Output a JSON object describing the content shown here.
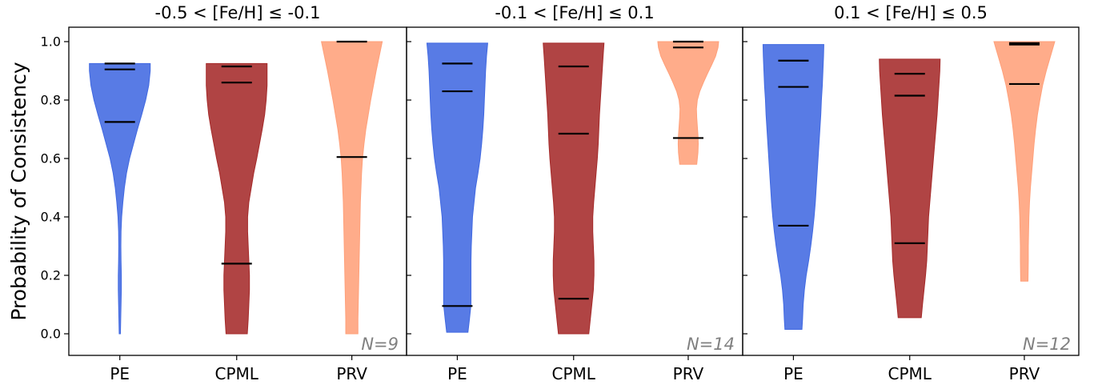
{
  "chart_data": {
    "type": "violin",
    "ylabel": "Probability of Consistency",
    "ylim": [
      0.0,
      1.0
    ],
    "yticks": [
      "0.0",
      "0.2",
      "0.4",
      "0.6",
      "0.8",
      "1.0"
    ],
    "categories": [
      "PE",
      "CPML",
      "PRV"
    ],
    "colors": {
      "PE": "#4169e1",
      "CPML": "#a52a2a",
      "PRV": "#ffa07a"
    },
    "panels": [
      {
        "title": "-0.5 < [Fe/H] ≤ -0.1",
        "n_label": "N=9",
        "violins": [
          {
            "category": "PE",
            "min": 0.0,
            "max": 0.925,
            "markers": [
              0.925,
              0.905,
              0.725
            ],
            "profile": [
              [
                0.0,
                0.02
              ],
              [
                0.05,
                0.03
              ],
              [
                0.1,
                0.04
              ],
              [
                0.15,
                0.05
              ],
              [
                0.2,
                0.05
              ],
              [
                0.25,
                0.04
              ],
              [
                0.3,
                0.035
              ],
              [
                0.35,
                0.04
              ],
              [
                0.4,
                0.06
              ],
              [
                0.45,
                0.1
              ],
              [
                0.5,
                0.15
              ],
              [
                0.55,
                0.22
              ],
              [
                0.6,
                0.32
              ],
              [
                0.65,
                0.45
              ],
              [
                0.7,
                0.58
              ],
              [
                0.75,
                0.72
              ],
              [
                0.8,
                0.85
              ],
              [
                0.85,
                0.95
              ],
              [
                0.9,
                1.0
              ],
              [
                0.925,
                1.0
              ]
            ]
          },
          {
            "category": "CPML",
            "min": 0.0,
            "max": 0.925,
            "markers": [
              0.915,
              0.86,
              0.24
            ],
            "profile": [
              [
                0.0,
                0.35
              ],
              [
                0.05,
                0.38
              ],
              [
                0.1,
                0.4
              ],
              [
                0.15,
                0.42
              ],
              [
                0.2,
                0.42
              ],
              [
                0.25,
                0.4
              ],
              [
                0.3,
                0.38
              ],
              [
                0.35,
                0.36
              ],
              [
                0.4,
                0.36
              ],
              [
                0.45,
                0.4
              ],
              [
                0.5,
                0.48
              ],
              [
                0.55,
                0.56
              ],
              [
                0.6,
                0.66
              ],
              [
                0.65,
                0.75
              ],
              [
                0.7,
                0.84
              ],
              [
                0.75,
                0.92
              ],
              [
                0.8,
                0.97
              ],
              [
                0.85,
                1.0
              ],
              [
                0.9,
                1.0
              ],
              [
                0.925,
                1.0
              ]
            ]
          },
          {
            "category": "PRV",
            "min": 0.0,
            "max": 1.0,
            "markers": [
              1.0,
              0.605
            ],
            "profile": [
              [
                0.0,
                0.2
              ],
              [
                0.05,
                0.2
              ],
              [
                0.1,
                0.21
              ],
              [
                0.15,
                0.22
              ],
              [
                0.2,
                0.23
              ],
              [
                0.25,
                0.24
              ],
              [
                0.3,
                0.25
              ],
              [
                0.35,
                0.26
              ],
              [
                0.4,
                0.27
              ],
              [
                0.45,
                0.28
              ],
              [
                0.5,
                0.3
              ],
              [
                0.55,
                0.32
              ],
              [
                0.6,
                0.35
              ],
              [
                0.65,
                0.4
              ],
              [
                0.7,
                0.46
              ],
              [
                0.75,
                0.54
              ],
              [
                0.8,
                0.62
              ],
              [
                0.85,
                0.71
              ],
              [
                0.9,
                0.8
              ],
              [
                0.95,
                0.9
              ],
              [
                1.0,
                1.0
              ]
            ]
          }
        ]
      },
      {
        "title": "-0.1 < [Fe/H] ≤ 0.1",
        "n_label": "N=14",
        "violins": [
          {
            "category": "PE",
            "min": 0.005,
            "max": 0.995,
            "markers": [
              0.925,
              0.83,
              0.095
            ],
            "profile": [
              [
                0.005,
                0.35
              ],
              [
                0.05,
                0.4
              ],
              [
                0.1,
                0.45
              ],
              [
                0.15,
                0.45
              ],
              [
                0.2,
                0.45
              ],
              [
                0.25,
                0.45
              ],
              [
                0.3,
                0.46
              ],
              [
                0.35,
                0.48
              ],
              [
                0.4,
                0.5
              ],
              [
                0.45,
                0.55
              ],
              [
                0.5,
                0.6
              ],
              [
                0.55,
                0.68
              ],
              [
                0.6,
                0.75
              ],
              [
                0.65,
                0.8
              ],
              [
                0.7,
                0.84
              ],
              [
                0.75,
                0.87
              ],
              [
                0.8,
                0.89
              ],
              [
                0.85,
                0.91
              ],
              [
                0.9,
                0.93
              ],
              [
                0.95,
                0.96
              ],
              [
                0.995,
                1.0
              ]
            ]
          },
          {
            "category": "CPML",
            "min": 0.0,
            "max": 0.995,
            "markers": [
              0.915,
              0.685,
              0.12
            ],
            "profile": [
              [
                0.0,
                0.5
              ],
              [
                0.05,
                0.55
              ],
              [
                0.1,
                0.6
              ],
              [
                0.15,
                0.65
              ],
              [
                0.2,
                0.67
              ],
              [
                0.25,
                0.67
              ],
              [
                0.3,
                0.65
              ],
              [
                0.35,
                0.63
              ],
              [
                0.4,
                0.63
              ],
              [
                0.45,
                0.66
              ],
              [
                0.5,
                0.7
              ],
              [
                0.55,
                0.74
              ],
              [
                0.6,
                0.78
              ],
              [
                0.65,
                0.81
              ],
              [
                0.7,
                0.83
              ],
              [
                0.75,
                0.85
              ],
              [
                0.8,
                0.88
              ],
              [
                0.85,
                0.91
              ],
              [
                0.9,
                0.94
              ],
              [
                0.95,
                0.97
              ],
              [
                0.995,
                1.0
              ]
            ]
          },
          {
            "category": "PRV",
            "min": 0.58,
            "max": 1.0,
            "markers": [
              1.0,
              0.98,
              0.67
            ],
            "profile": [
              [
                0.58,
                0.28
              ],
              [
                0.62,
                0.32
              ],
              [
                0.65,
                0.33
              ],
              [
                0.68,
                0.32
              ],
              [
                0.71,
                0.3
              ],
              [
                0.74,
                0.28
              ],
              [
                0.77,
                0.27
              ],
              [
                0.8,
                0.3
              ],
              [
                0.83,
                0.38
              ],
              [
                0.86,
                0.5
              ],
              [
                0.89,
                0.63
              ],
              [
                0.92,
                0.77
              ],
              [
                0.95,
                0.9
              ],
              [
                0.98,
                0.98
              ],
              [
                1.0,
                1.0
              ]
            ]
          }
        ]
      },
      {
        "title": "0.1 < [Fe/H] ≤ 0.5",
        "n_label": "N=12",
        "violins": [
          {
            "category": "PE",
            "min": 0.015,
            "max": 0.99,
            "markers": [
              0.935,
              0.845,
              0.37
            ],
            "profile": [
              [
                0.015,
                0.28
              ],
              [
                0.05,
                0.3
              ],
              [
                0.1,
                0.32
              ],
              [
                0.15,
                0.36
              ],
              [
                0.2,
                0.42
              ],
              [
                0.25,
                0.5
              ],
              [
                0.3,
                0.57
              ],
              [
                0.35,
                0.63
              ],
              [
                0.4,
                0.68
              ],
              [
                0.45,
                0.72
              ],
              [
                0.5,
                0.75
              ],
              [
                0.55,
                0.78
              ],
              [
                0.6,
                0.81
              ],
              [
                0.65,
                0.84
              ],
              [
                0.7,
                0.87
              ],
              [
                0.75,
                0.9
              ],
              [
                0.8,
                0.92
              ],
              [
                0.85,
                0.95
              ],
              [
                0.9,
                0.97
              ],
              [
                0.95,
                0.99
              ],
              [
                0.99,
                1.0
              ]
            ]
          },
          {
            "category": "CPML",
            "min": 0.055,
            "max": 0.94,
            "markers": [
              0.89,
              0.815,
              0.31
            ],
            "profile": [
              [
                0.055,
                0.38
              ],
              [
                0.1,
                0.42
              ],
              [
                0.15,
                0.47
              ],
              [
                0.2,
                0.52
              ],
              [
                0.25,
                0.56
              ],
              [
                0.3,
                0.58
              ],
              [
                0.35,
                0.6
              ],
              [
                0.4,
                0.62
              ],
              [
                0.45,
                0.66
              ],
              [
                0.5,
                0.7
              ],
              [
                0.55,
                0.74
              ],
              [
                0.6,
                0.78
              ],
              [
                0.65,
                0.82
              ],
              [
                0.7,
                0.86
              ],
              [
                0.75,
                0.9
              ],
              [
                0.8,
                0.93
              ],
              [
                0.85,
                0.96
              ],
              [
                0.9,
                0.99
              ],
              [
                0.94,
                1.0
              ]
            ]
          },
          {
            "category": "PRV",
            "min": 0.18,
            "max": 1.0,
            "markers": [
              0.995,
              0.99,
              0.855
            ],
            "profile": [
              [
                0.18,
                0.12
              ],
              [
                0.25,
                0.13
              ],
              [
                0.3,
                0.13
              ],
              [
                0.35,
                0.14
              ],
              [
                0.4,
                0.15
              ],
              [
                0.45,
                0.17
              ],
              [
                0.5,
                0.2
              ],
              [
                0.55,
                0.24
              ],
              [
                0.6,
                0.28
              ],
              [
                0.65,
                0.32
              ],
              [
                0.7,
                0.37
              ],
              [
                0.75,
                0.43
              ],
              [
                0.8,
                0.51
              ],
              [
                0.85,
                0.6
              ],
              [
                0.9,
                0.72
              ],
              [
                0.95,
                0.86
              ],
              [
                1.0,
                1.0
              ]
            ]
          }
        ]
      }
    ]
  }
}
